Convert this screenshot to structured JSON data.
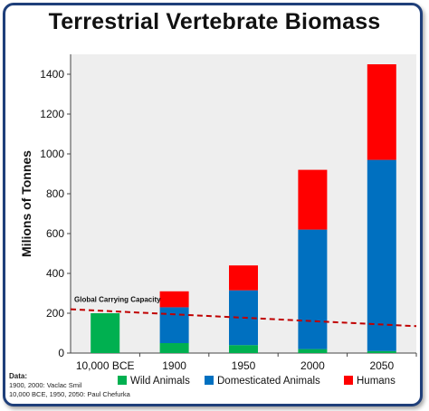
{
  "chart_data": {
    "type": "bar",
    "stacked": true,
    "title": "Terrestrial Vertebrate Biomass",
    "ylabel": "Milions of Tonnes",
    "xlabel": "",
    "categories": [
      "10,000 BCE",
      "1900",
      "1950",
      "2000",
      "2050"
    ],
    "series": [
      {
        "name": "Wild Animals",
        "color": "#00b050",
        "values": [
          200,
          50,
          40,
          20,
          10
        ]
      },
      {
        "name": "Domesticated Animals",
        "color": "#0070c0",
        "values": [
          0,
          180,
          275,
          600,
          960
        ]
      },
      {
        "name": "Humans",
        "color": "#ff0000",
        "values": [
          0,
          80,
          125,
          300,
          480
        ]
      }
    ],
    "ylim": [
      0,
      1500
    ],
    "yticks": [
      0,
      200,
      400,
      600,
      800,
      1000,
      1200,
      1400
    ],
    "grid": false,
    "legend_position": "bottom",
    "annotation": {
      "text": "Global Carrying Capacity",
      "line_start": 220,
      "line_end": 135,
      "color": "#c00000",
      "style": "dashed"
    }
  },
  "source_note": {
    "heading": "Data:",
    "lines": [
      "1900, 2000: Vaclac Smil",
      "10,000 BCE, 1950, 2050: Paul Chefurka"
    ]
  },
  "colors": {
    "frame_border": "#1f3f7a",
    "plot_bg": "#eeeeee"
  }
}
